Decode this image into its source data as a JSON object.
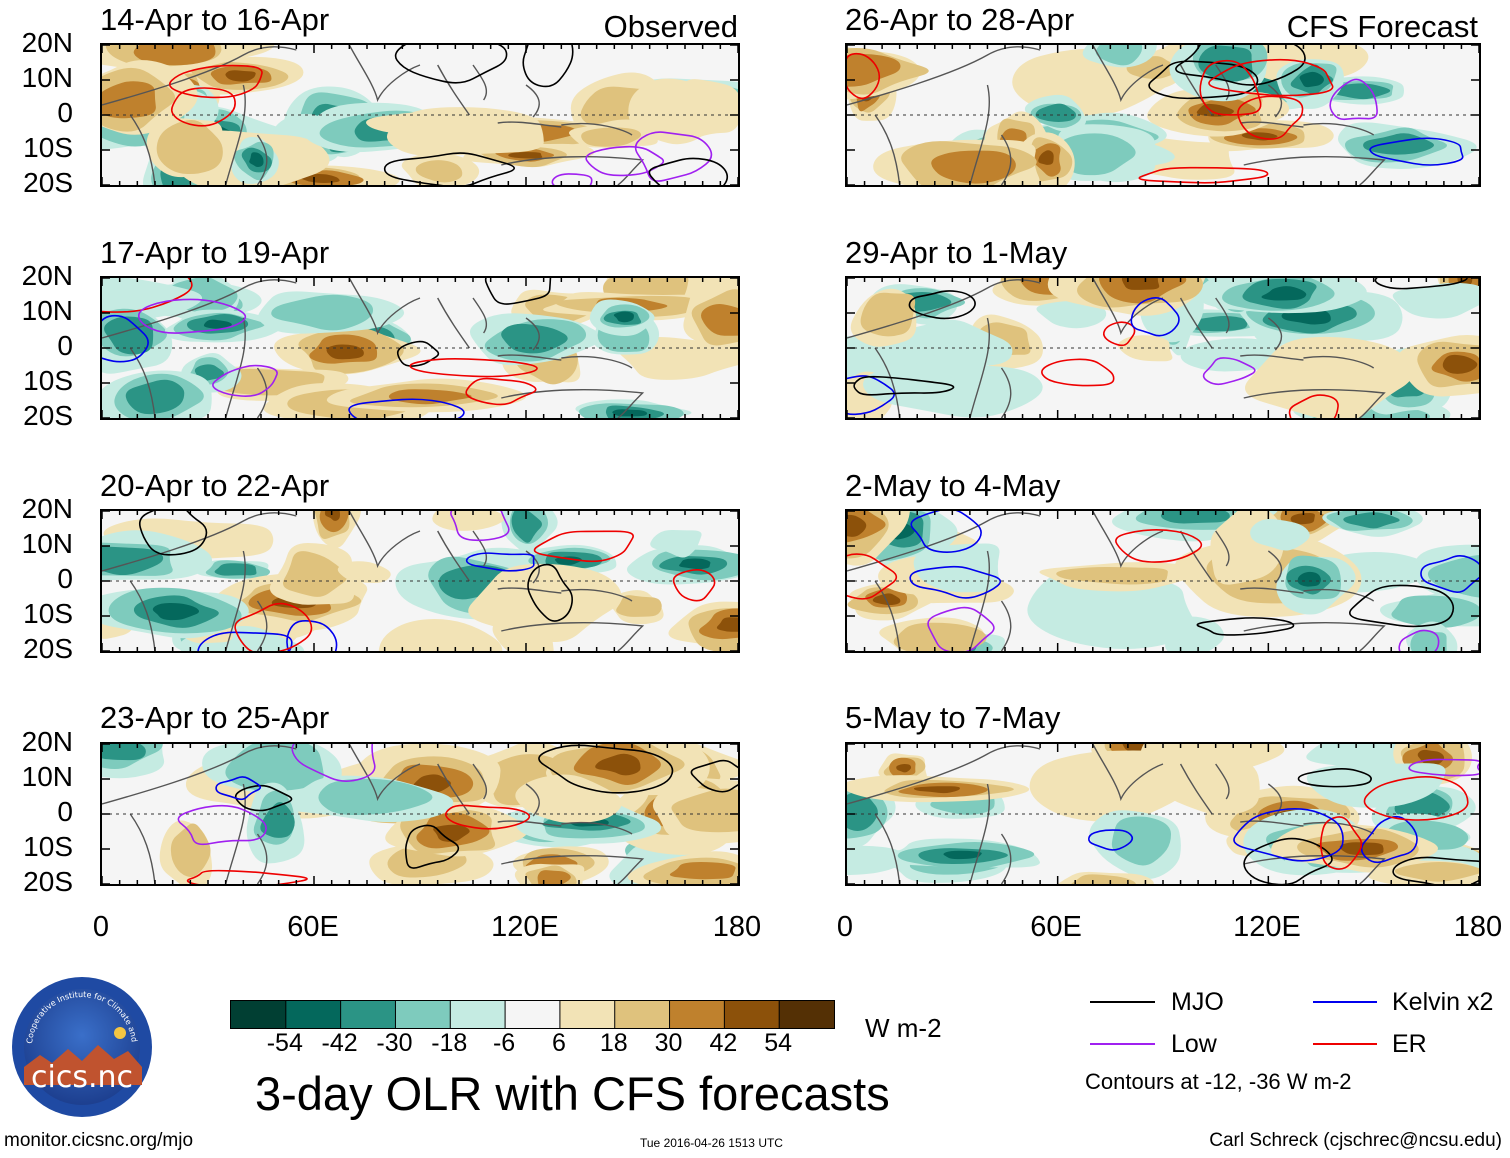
{
  "header": {
    "observed_label": "Observed",
    "forecast_label": "CFS Forecast"
  },
  "axes": {
    "y_ticks": [
      "20N",
      "10N",
      "0",
      "10S",
      "20S"
    ],
    "x_ticks": [
      "0",
      "60E",
      "120E",
      "180"
    ]
  },
  "chart_data": [
    {
      "type": "heatmap",
      "group": "observed",
      "title": "14-Apr to 16-Apr",
      "xlim": [
        0,
        180
      ],
      "ylim": [
        -20,
        20
      ],
      "variable": "3-day OLR anomaly"
    },
    {
      "type": "heatmap",
      "group": "observed",
      "title": "17-Apr to 19-Apr",
      "xlim": [
        0,
        180
      ],
      "ylim": [
        -20,
        20
      ],
      "variable": "3-day OLR anomaly"
    },
    {
      "type": "heatmap",
      "group": "observed",
      "title": "20-Apr to 22-Apr",
      "xlim": [
        0,
        180
      ],
      "ylim": [
        -20,
        20
      ],
      "variable": "3-day OLR anomaly"
    },
    {
      "type": "heatmap",
      "group": "observed",
      "title": "23-Apr to 25-Apr",
      "xlim": [
        0,
        180
      ],
      "ylim": [
        -20,
        20
      ],
      "variable": "3-day OLR anomaly"
    },
    {
      "type": "heatmap",
      "group": "forecast",
      "title": "26-Apr to 28-Apr",
      "xlim": [
        0,
        180
      ],
      "ylim": [
        -20,
        20
      ],
      "variable": "3-day OLR anomaly"
    },
    {
      "type": "heatmap",
      "group": "forecast",
      "title": "29-Apr to 1-May",
      "xlim": [
        0,
        180
      ],
      "ylim": [
        -20,
        20
      ],
      "variable": "3-day OLR anomaly"
    },
    {
      "type": "heatmap",
      "group": "forecast",
      "title": "2-May to 4-May",
      "xlim": [
        0,
        180
      ],
      "ylim": [
        -20,
        20
      ],
      "variable": "3-day OLR anomaly"
    },
    {
      "type": "heatmap",
      "group": "forecast",
      "title": "5-May to 7-May",
      "xlim": [
        0,
        180
      ],
      "ylim": [
        -20,
        20
      ],
      "variable": "3-day OLR anomaly"
    }
  ],
  "colorbar": {
    "units": "W m-2",
    "labels": [
      "-54",
      "-42",
      "-30",
      "-18",
      "-6",
      "6",
      "18",
      "30",
      "42",
      "54"
    ],
    "colors": [
      "#013f33",
      "#04685c",
      "#2b9485",
      "#7ecbbd",
      "#c5ebe2",
      "#f5f5f5",
      "#f2e3b6",
      "#dfc27d",
      "#bf812d",
      "#8c510a",
      "#543005"
    ]
  },
  "legend": {
    "items": [
      {
        "label": "MJO",
        "color": "#000000"
      },
      {
        "label": "Kelvin x2",
        "color": "#0000ee"
      },
      {
        "label": "Low",
        "color": "#a020f0"
      },
      {
        "label": "ER",
        "color": "#ee0000"
      }
    ],
    "note": "Contours at -12, -36 W m-2"
  },
  "main_title": "3-day OLR with CFS forecasts",
  "footer": {
    "website": "monitor.cicsnc.org/mjo",
    "timestamp": "Tue 2016-04-26 1513 UTC",
    "author": "Carl Schreck (cjschrec@ncsu.edu)"
  },
  "logo": {
    "text": "cics.nc",
    "ring_text": "Cooperative Institute for Climate and Satellites"
  }
}
